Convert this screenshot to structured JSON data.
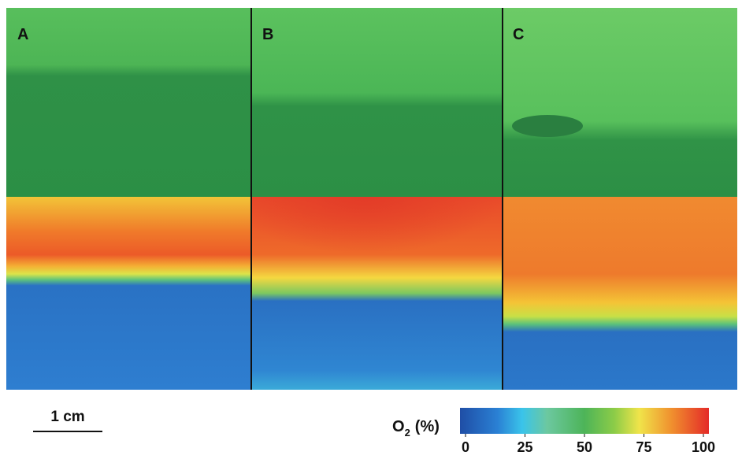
{
  "panels": [
    {
      "label": "A"
    },
    {
      "label": "B"
    },
    {
      "label": "C"
    }
  ],
  "scale_bar": {
    "label": "1 cm"
  },
  "colorbar": {
    "title": {
      "main": "O",
      "subscript": "2",
      "unit": "(%)"
    },
    "lim": [
      0,
      100
    ],
    "ticks": [
      0,
      25,
      50,
      75,
      100
    ]
  }
}
